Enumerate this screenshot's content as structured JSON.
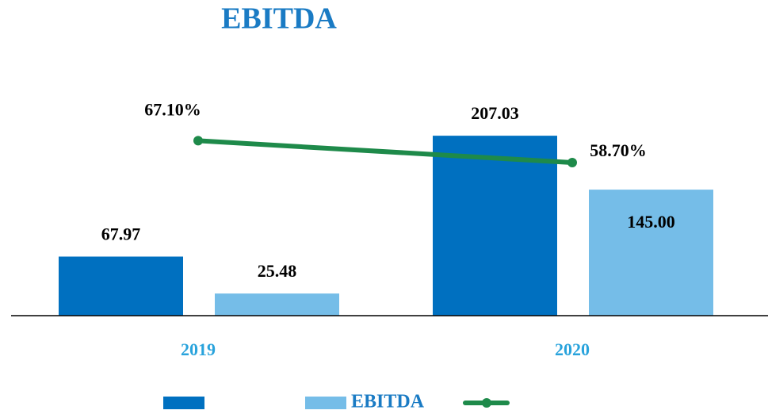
{
  "chart_data": {
    "type": "bar",
    "title": "EBITDA",
    "categories": [
      "2019",
      "2020"
    ],
    "series": [
      {
        "color": "#0070c0",
        "values": [
          67.97,
          207.03
        ]
      },
      {
        "name": "EBITDA",
        "color": "#75bde8",
        "values": [
          25.48,
          145
        ],
        "value_labels": [
          "25.48",
          "145.00"
        ]
      },
      {
        "type": "line",
        "axis": "y2",
        "color": "#1e8a4a",
        "values": [
          67.1,
          58.7
        ],
        "value_labels": [
          "67.10%",
          "58.70%"
        ]
      }
    ],
    "ylim": [
      0,
      240
    ],
    "y2lim": [
      0,
      80
    ],
    "legend": "bottom"
  }
}
